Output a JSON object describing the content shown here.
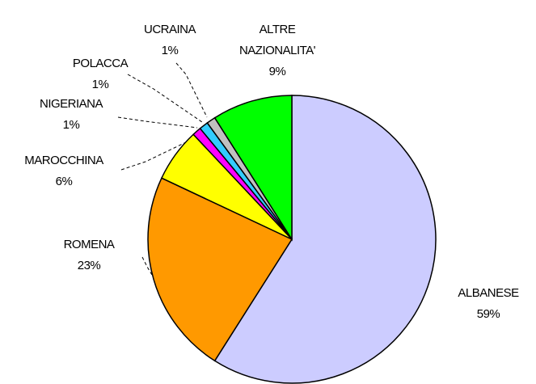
{
  "chart_data": {
    "type": "pie",
    "categories": [
      "ALBANESE",
      "ROMENA",
      "MAROCCHINA",
      "NIGERIANA",
      "POLACCA",
      "UCRAINA",
      "ALTRE NAZIONALITA'"
    ],
    "values": [
      59,
      23,
      6,
      1,
      1,
      1,
      9
    ],
    "value_labels": [
      "59%",
      "23%",
      "6%",
      "1%",
      "1%",
      "1%",
      "9%"
    ],
    "colors": [
      "#ccccff",
      "#ff9900",
      "#ffff00",
      "#ff00ff",
      "#33ccff",
      "#c0c0c0",
      "#00ff00"
    ]
  }
}
